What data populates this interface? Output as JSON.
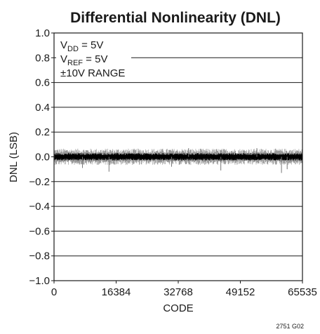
{
  "chart_data": {
    "type": "line",
    "title": "Differential Nonlinearity (DNL)",
    "xlabel": "CODE",
    "ylabel": "DNL (LSB)",
    "xlim": [
      0,
      65535
    ],
    "ylim": [
      -1.0,
      1.0
    ],
    "x_ticks": [
      0,
      16384,
      32768,
      49152,
      65535
    ],
    "x_tick_labels": [
      "0",
      "16384",
      "32768",
      "49152",
      "65535"
    ],
    "y_ticks": [
      1.0,
      0.8,
      0.6,
      0.4,
      0.2,
      0.0,
      -0.2,
      -0.4,
      -0.6,
      -0.8,
      -1.0
    ],
    "y_tick_labels": [
      "1.0",
      "0.8",
      "0.6",
      "0.4",
      "0.2",
      "0.0",
      "−0.2",
      "−0.4",
      "−0.6",
      "−0.8",
      "−1.0"
    ],
    "grid": true,
    "series": [
      {
        "color": "#000000",
        "band_min": -0.03,
        "band_max": 0.03,
        "spikes": [
          {
            "x": 7500,
            "y": -0.09
          },
          {
            "x": 14500,
            "y": -0.12
          },
          {
            "x": 31000,
            "y": -0.08
          },
          {
            "x": 35500,
            "y": 0.07
          },
          {
            "x": 44000,
            "y": -0.11
          },
          {
            "x": 53500,
            "y": 0.07
          },
          {
            "x": 60000,
            "y": -0.13
          },
          {
            "x": 61500,
            "y": -0.1
          }
        ]
      }
    ],
    "annotations": [
      {
        "main": "V",
        "sub": "DD",
        "rest": " = 5V"
      },
      {
        "main": "V",
        "sub": "REF",
        "rest": " = 5V"
      },
      {
        "main": "±10V RANGE",
        "sub": "",
        "rest": ""
      }
    ],
    "figure_id": "2751 G02"
  }
}
